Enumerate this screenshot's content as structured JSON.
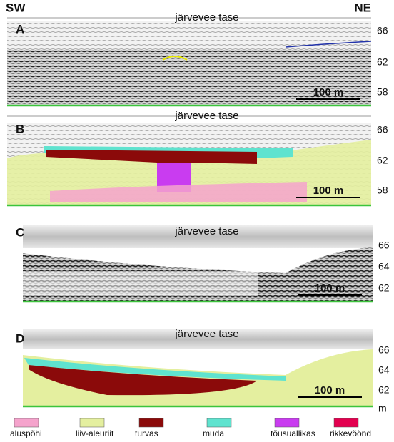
{
  "header": {
    "left": "SW",
    "right": "NE"
  },
  "panels": [
    {
      "label": "A",
      "water_level": "järvevee tase",
      "scale": "100 m",
      "axis_ticks": [
        "66",
        "62",
        "58"
      ]
    },
    {
      "label": "B",
      "water_level": "järvevee tase",
      "scale": "100 m",
      "axis_ticks": [
        "66",
        "62",
        "58"
      ]
    },
    {
      "label": "C",
      "water_level": "järvevee tase",
      "scale": "100 m",
      "axis_ticks": [
        "66",
        "64",
        "62"
      ]
    },
    {
      "label": "D",
      "water_level": "järvevee tase",
      "scale": "100 m",
      "axis_ticks": [
        "66",
        "64",
        "62"
      ]
    }
  ],
  "axis_unit": "m",
  "legend": [
    {
      "label": "aluspõhi",
      "color": "#f5a3cc"
    },
    {
      "label": "liiv-aleuriit",
      "color": "#e4ef9f"
    },
    {
      "label": "turvas",
      "color": "#8b0a0a"
    },
    {
      "label": "muda",
      "color": "#5fe3cf"
    },
    {
      "label": "tõusuallikas",
      "color": "#c93cf0"
    },
    {
      "label": "rikkevöönd",
      "color": "#e3004f"
    }
  ]
}
